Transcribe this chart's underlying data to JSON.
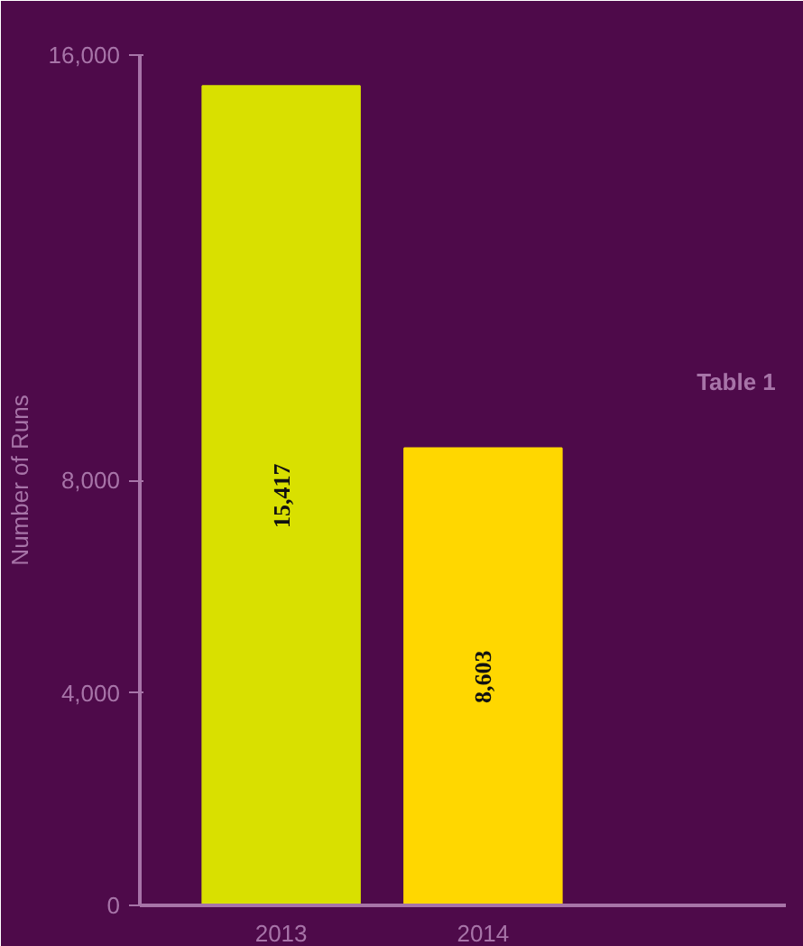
{
  "chart_data": {
    "type": "bar",
    "ylabel": "Number of Runs",
    "categories": [
      "2013",
      "2014"
    ],
    "values": [
      15417,
      8603
    ],
    "colors": [
      "#d9e000",
      "#ffd700"
    ],
    "value_labels": [
      "15,417",
      "8,603"
    ],
    "ylim": [
      0,
      16000
    ],
    "yticks": [
      {
        "value": 0,
        "label": "0"
      },
      {
        "value": 4000,
        "label": "4,000"
      },
      {
        "value": 8000,
        "label": "8,000"
      },
      {
        "value": 16000,
        "label": "16,000"
      }
    ],
    "annotations": [
      "Table 1"
    ],
    "grid": false
  }
}
